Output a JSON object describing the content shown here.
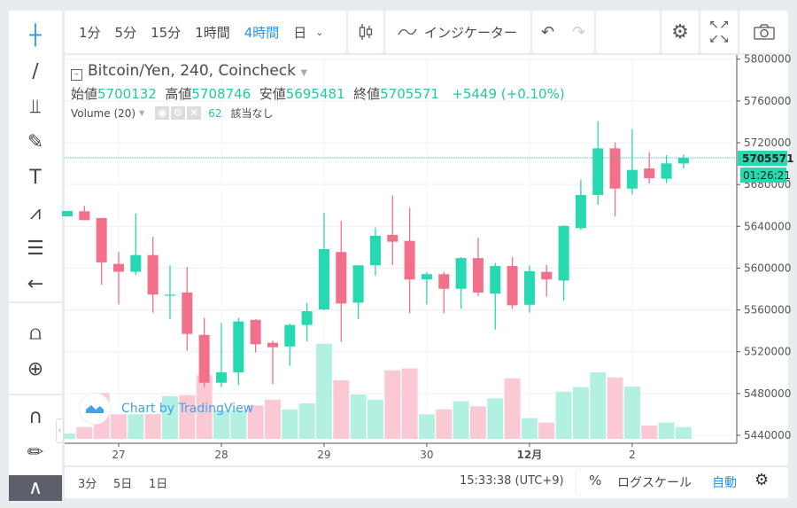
{
  "toolbar": {
    "timeframes": [
      "1分",
      "5分",
      "15分",
      "1時間",
      "4時間",
      "日"
    ],
    "active_timeframe": "4時間",
    "indicators_label": "インジケーター",
    "icons": [
      "candlestick-icon",
      "undo-icon",
      "redo-icon",
      "settings-icon",
      "fullscreen-icon",
      "camera-icon"
    ]
  },
  "left_tools": [
    "crosshair-icon",
    "trend-line-icon",
    "pitchfork-icon",
    "brush-icon",
    "text-icon",
    "pattern-icon",
    "fib-icon",
    "arrow-left-icon",
    "ruler-icon",
    "zoom-in-icon",
    "magnet-icon",
    "lock-drawing-icon",
    "hide-drawings-icon"
  ],
  "legend": {
    "title": "Bitcoin/Yen, 240, Coincheck",
    "open_label": "始値",
    "open": "5700132",
    "high_label": "高値",
    "high": "5708746",
    "low_label": "安値",
    "low": "5695481",
    "close_label": "終値",
    "close": "5705571",
    "change": "+5449 (+0.10%)",
    "volume_label": "Volume (20)",
    "volume_value": "62",
    "volume_extra": "該当なし"
  },
  "watermark": "Chart by TradingView",
  "price_label": "5705571",
  "countdown": "01:26:21",
  "bottom": {
    "ranges": [
      "3分",
      "5日",
      "1日"
    ],
    "clock": "15:33:38 (UTC+9)",
    "percent": "%",
    "log": "ログスケール",
    "auto": "自動"
  },
  "colors": {
    "up": "#26d9b0",
    "down": "#f2708a",
    "up_vol": "#b2f0e2",
    "down_vol": "#fbc9d3",
    "accent": "#2196f3"
  },
  "chart_data": {
    "type": "candlestick",
    "ylim": [
      5430000,
      5810000
    ],
    "yticks": [
      5800000,
      5760000,
      5720000,
      5680000,
      5640000,
      5600000,
      5560000,
      5520000,
      5480000,
      5440000
    ],
    "grid": true,
    "xticks": [
      {
        "at": "11/27 00:00",
        "label": "27"
      },
      {
        "at": "11/28 00:00",
        "label": "28"
      },
      {
        "at": "11/29 00:00",
        "label": "29"
      },
      {
        "at": "11/30 00:00",
        "label": "30"
      },
      {
        "at": "12/01 00:00",
        "label": "12月"
      },
      {
        "at": "12/02 00:00",
        "label": "2"
      }
    ],
    "x": [
      "11/26 12:00",
      "11/26 16:00",
      "11/26 20:00",
      "11/27 00:00",
      "11/27 04:00",
      "11/27 08:00",
      "11/27 12:00",
      "11/27 16:00",
      "11/27 20:00",
      "11/28 00:00",
      "11/28 04:00",
      "11/28 08:00",
      "11/28 12:00",
      "11/28 16:00",
      "11/28 20:00",
      "11/29 00:00",
      "11/29 04:00",
      "11/29 08:00",
      "11/29 12:00",
      "11/29 16:00",
      "11/29 20:00",
      "11/30 00:00",
      "11/30 04:00",
      "11/30 08:00",
      "11/30 12:00",
      "11/30 16:00",
      "11/30 20:00",
      "12/01 00:00",
      "12/01 04:00",
      "12/01 08:00",
      "12/01 12:00",
      "12/01 16:00",
      "12/01 20:00",
      "12/02 00:00",
      "12/02 04:00",
      "12/02 08:00",
      "12/02 12:00"
    ],
    "ohlc": [
      [
        5649600,
        5654700,
        5649600,
        5654700
      ],
      [
        5654400,
        5659500,
        5645900,
        5645900
      ],
      [
        5647900,
        5647900,
        5584200,
        5605500
      ],
      [
        5604000,
        5615400,
        5565300,
        5596500
      ],
      [
        5596500,
        5652100,
        5593600,
        5612500
      ],
      [
        5612500,
        5629800,
        5557300,
        5574700
      ],
      [
        5574500,
        5602700,
        5551200,
        5574600
      ],
      [
        5576600,
        5601200,
        5520900,
        5537000
      ],
      [
        5536100,
        5552300,
        5486100,
        5490300
      ],
      [
        5490300,
        5547500,
        5486100,
        5500200
      ],
      [
        5500200,
        5552300,
        5488100,
        5548900
      ],
      [
        5550500,
        5551200,
        5519200,
        5527100
      ],
      [
        5528500,
        5530500,
        5489000,
        5524300
      ],
      [
        5525000,
        5546700,
        5506400,
        5545600
      ],
      [
        5545600,
        5566700,
        5529900,
        5558800
      ],
      [
        5560500,
        5653000,
        5559500,
        5618200
      ],
      [
        5615400,
        5645300,
        5529400,
        5566100
      ],
      [
        5566900,
        5602700,
        5551200,
        5602700
      ],
      [
        5602700,
        5638800,
        5592700,
        5630900
      ],
      [
        5631800,
        5669400,
        5602900,
        5625300
      ],
      [
        5626100,
        5657800,
        5556800,
        5589200
      ],
      [
        5589200,
        5596400,
        5565300,
        5594200
      ],
      [
        5594200,
        5596400,
        5556800,
        5580200
      ],
      [
        5580200,
        5610500,
        5561000,
        5609600
      ],
      [
        5609600,
        5629000,
        5573000,
        5576600
      ],
      [
        5575600,
        5604900,
        5541200,
        5602000
      ],
      [
        5602000,
        5610500,
        5561000,
        5564400
      ],
      [
        5564900,
        5602700,
        5557300,
        5597100
      ],
      [
        5596400,
        5602900,
        5573000,
        5589200
      ],
      [
        5588100,
        5641100,
        5569000,
        5640300
      ],
      [
        5638300,
        5684600,
        5636600,
        5670000
      ],
      [
        5670000,
        5740600,
        5660600,
        5714600
      ],
      [
        5714600,
        5720300,
        5649600,
        5676100
      ],
      [
        5676100,
        5733000,
        5670500,
        5694000
      ],
      [
        5695400,
        5710900,
        5681200,
        5686100
      ],
      [
        5685500,
        5708100,
        5681200,
        5700200
      ],
      [
        5700132,
        5708746,
        5695481,
        5705571
      ]
    ],
    "volume": [
      28,
      62,
      241,
      129,
      129,
      130,
      225,
      230,
      334,
      149,
      149,
      176,
      206,
      155,
      186,
      500,
      308,
      233,
      206,
      360,
      370,
      129,
      155,
      197,
      171,
      213,
      318,
      109,
      85,
      248,
      272,
      350,
      323,
      276,
      70,
      85,
      62
    ],
    "last_price": 5705571
  }
}
